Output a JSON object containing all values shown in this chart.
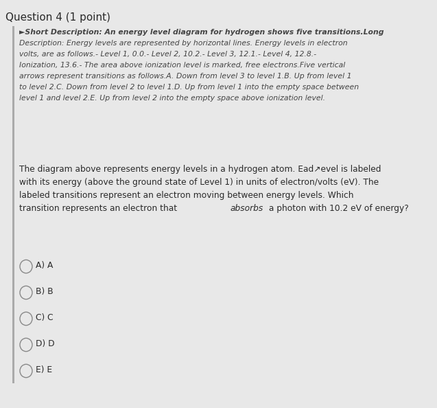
{
  "background_color": "#e8e8e8",
  "title": "Question 4 (1 point)",
  "title_fontsize": 11,
  "title_fontweight": "normal",
  "text_color": "#2a2a2a",
  "desc_color": "#444444",
  "circle_color": "#888888",
  "left_bar_color": "#aaaaaa",
  "short_desc_line1": "►Short Description: An energy level diagram for hydrogen shows five transitions.Long",
  "desc_lines": [
    "Description: Energy levels are represented by horizontal lines. Energy levels in electron",
    "volts, are as follows.- Level 1, 0.0.- Level 2, 10.2.- Level 3, 12.1.- Level 4, 12.8.-",
    "Ionization, 13.6.- The area above ionization level is marked, free electrons.Five vertical",
    "arrows represent transitions as follows.A. Down from level 3 to level 1.B. Up from level 1",
    "to level 2.C. Down from level 2 to level 1.D. Up from level 1 into the empty space between",
    "level 1 and level 2.E. Up from level 2 into the empty space above ionization level."
  ],
  "question_lines": [
    "The diagram above represents energy levels in a hydrogen atom. Ead↗evel is labeled",
    "with its energy (above the ground state of Level 1) in units of electron/volts (eV). The",
    "labeled transitions represent an electron moving between energy levels. Which",
    "transition represents an electron that absorbs a photon with 10.2 eV of energy?"
  ],
  "question_last_prefix": "transition represents an electron that ",
  "question_last_italic": "absorbs",
  "question_last_suffix": " a photon with 10.2 eV of energy?",
  "options": [
    "A) A",
    "B) B",
    "C) C",
    "D) D",
    "E) E"
  ],
  "font_family": "DejaVu Sans"
}
